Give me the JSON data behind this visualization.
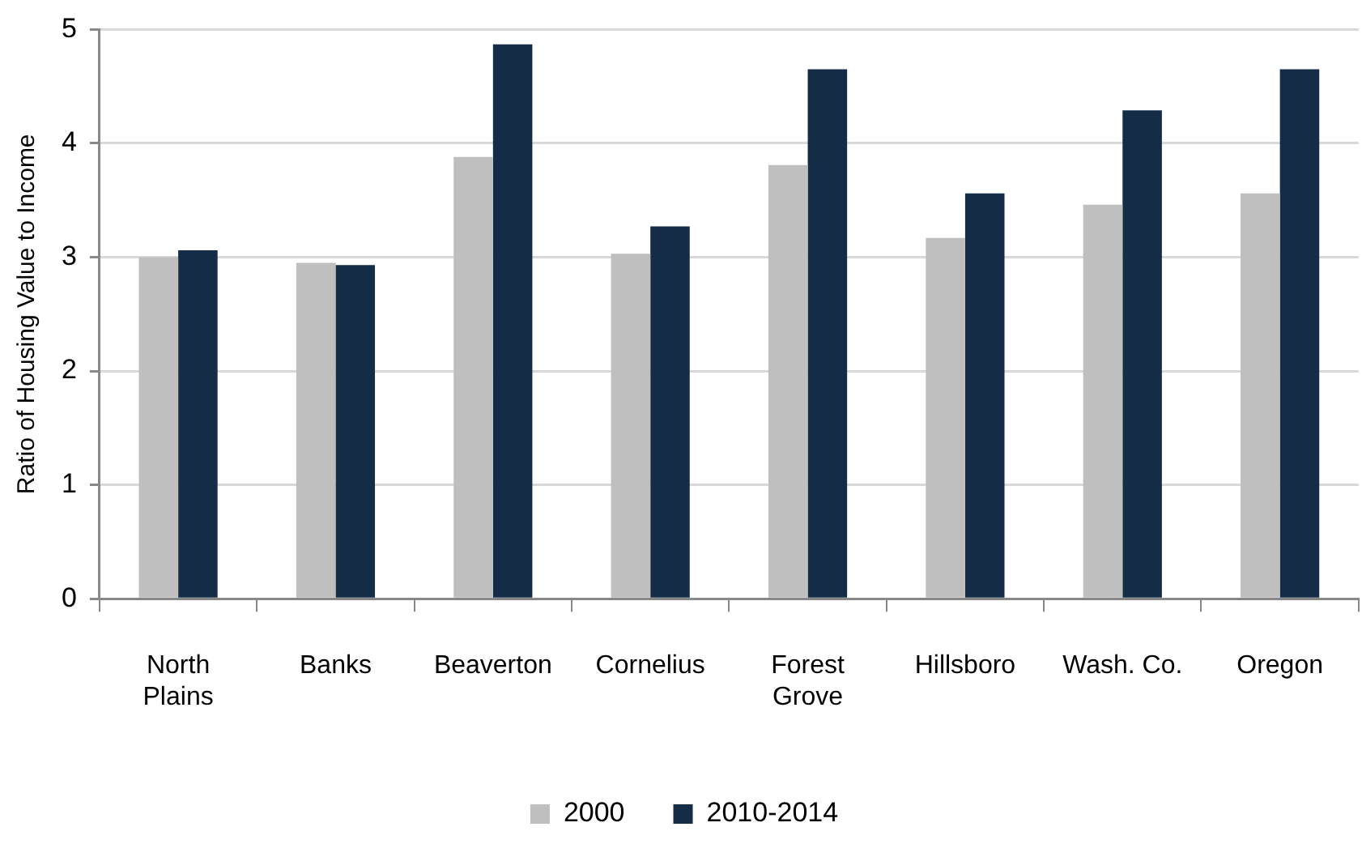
{
  "chart_data": {
    "type": "bar",
    "ylabel": "Ratio of Housing Value to Income",
    "categories": [
      "North\nPlains",
      "Banks",
      "Beaverton",
      "Cornelius",
      "Forest\nGrove",
      "Hillsboro",
      "Wash. Co.",
      "Oregon"
    ],
    "series": [
      {
        "name": "2000",
        "color": "#bfbfbf",
        "values": [
          3.0,
          2.95,
          3.88,
          3.03,
          3.81,
          3.17,
          3.46,
          3.56
        ]
      },
      {
        "name": "2010-2014",
        "color": "#142c46",
        "values": [
          3.06,
          2.93,
          4.87,
          3.27,
          4.65,
          3.56,
          4.29,
          4.65
        ]
      }
    ],
    "ylim": [
      0,
      5
    ],
    "yticks": [
      0,
      1,
      2,
      3,
      4,
      5
    ],
    "grid": "y",
    "legend": "bottom"
  }
}
